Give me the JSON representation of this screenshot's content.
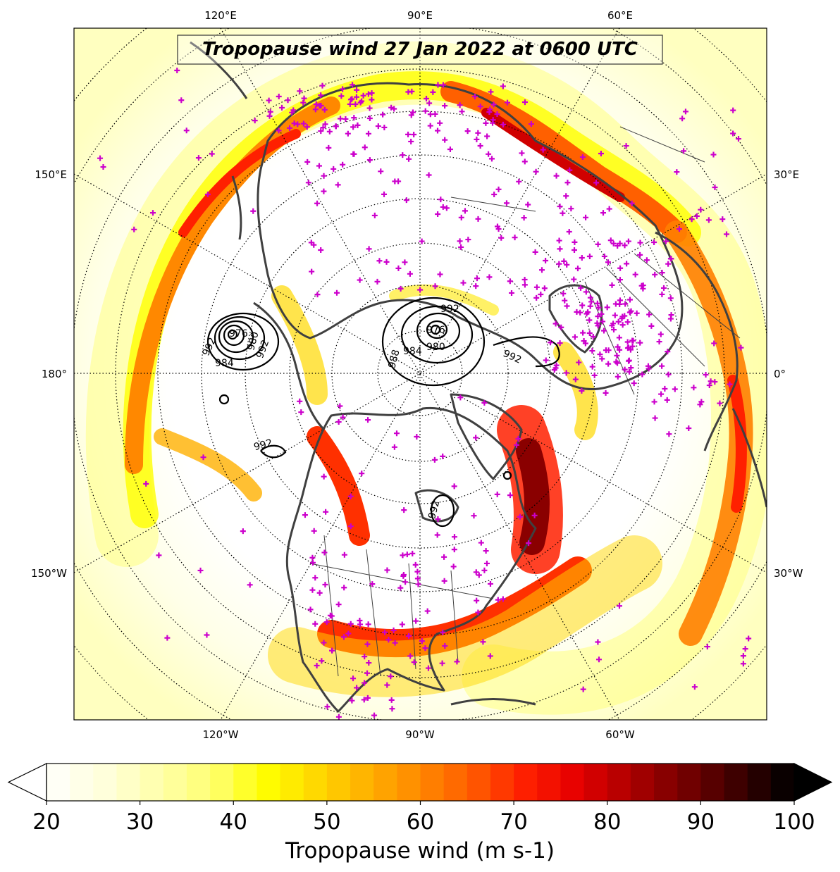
{
  "title": "Tropopause wind 27 Jan 2022 at 0600 UTC",
  "colorbar": {
    "label": "Tropopause wind (m s-1)",
    "min": 20,
    "max": 100,
    "step": 2.5,
    "extend": "both",
    "tick_labels": [
      "20",
      "30",
      "40",
      "50",
      "60",
      "70",
      "80",
      "90",
      "100"
    ],
    "colormap": "hot_r",
    "colors": [
      "#fffff6",
      "#ffffd8",
      "#ffffa8",
      "#ffff70",
      "#ffff00",
      "#ffd800",
      "#ffb000",
      "#ff8800",
      "#ff5c00",
      "#ff2000",
      "#e60000",
      "#b00000",
      "#7a0000",
      "#440000",
      "#0a0000"
    ]
  },
  "map": {
    "projection": "north-polar-stereographic",
    "meridian_labels": [
      {
        "id": "120e",
        "text": "120°E"
      },
      {
        "id": "90e",
        "text": "90°E"
      },
      {
        "id": "60e",
        "text": "60°E"
      },
      {
        "id": "150e",
        "text": "150°E"
      },
      {
        "id": "30e",
        "text": "30°E"
      },
      {
        "id": "180",
        "text": "180°"
      },
      {
        "id": "0",
        "text": "0°"
      },
      {
        "id": "150w",
        "text": "150°W"
      },
      {
        "id": "30w",
        "text": "30°W"
      },
      {
        "id": "120w",
        "text": "120°W"
      },
      {
        "id": "90w",
        "text": "90°W"
      },
      {
        "id": "60w",
        "text": "60°W"
      }
    ],
    "pressure_contour_labels": [
      "992",
      "976",
      "984",
      "980",
      "992",
      "992",
      "976",
      "984",
      "980",
      "988",
      "992",
      "992",
      "992"
    ],
    "station_marker_color": "#cc00cc",
    "coastline_color": "#404040",
    "contour_color": "#000000"
  }
}
